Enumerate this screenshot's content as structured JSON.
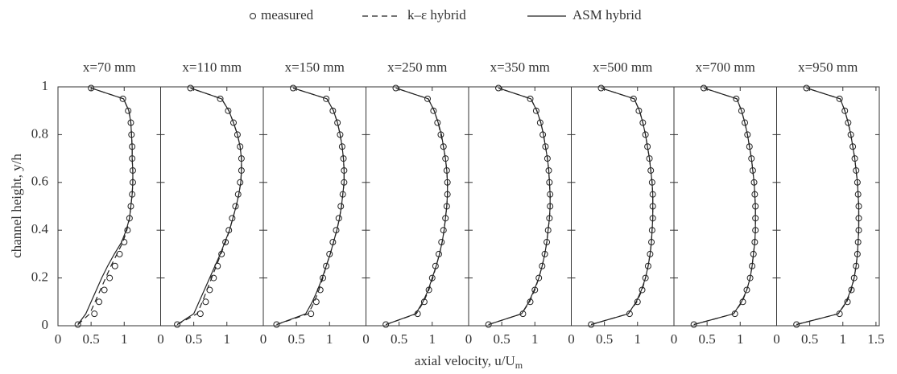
{
  "chart_data": {
    "type": "line",
    "legend": [
      {
        "name": "measured",
        "style": "markers"
      },
      {
        "name": "k–ε hybrid",
        "style": "dashed"
      },
      {
        "name": "ASM hybrid",
        "style": "solid"
      }
    ],
    "color": "#222222",
    "xlabel": {
      "text": "axial velocity, u/U",
      "subscript": "m"
    },
    "ylabel": "channel height, y/h",
    "ylim": [
      0,
      1
    ],
    "yticks": [
      0,
      0.2,
      0.4,
      0.6,
      0.8,
      1
    ],
    "y": [
      0.005,
      0.05,
      0.1,
      0.15,
      0.2,
      0.25,
      0.3,
      0.35,
      0.4,
      0.45,
      0.5,
      0.55,
      0.6,
      0.65,
      0.7,
      0.75,
      0.8,
      0.85,
      0.9,
      0.95,
      0.995
    ],
    "panels": [
      {
        "title": "x=70 mm",
        "xlim": [
          0,
          1.55
        ],
        "xticks": [
          0,
          0.5,
          1
        ],
        "series": [
          [
            0.3,
            0.55,
            0.62,
            0.7,
            0.78,
            0.86,
            0.93,
            1.0,
            1.05,
            1.08,
            1.1,
            1.12,
            1.13,
            1.13,
            1.12,
            1.12,
            1.11,
            1.1,
            1.06,
            0.98,
            0.5
          ],
          [
            0.3,
            0.48,
            0.56,
            0.64,
            0.72,
            0.8,
            0.89,
            0.98,
            1.04,
            1.08,
            1.1,
            1.12,
            1.13,
            1.13,
            1.12,
            1.12,
            1.11,
            1.1,
            1.07,
            0.99,
            0.5
          ],
          [
            0.3,
            0.42,
            0.5,
            0.58,
            0.66,
            0.75,
            0.85,
            0.96,
            1.03,
            1.08,
            1.1,
            1.12,
            1.13,
            1.13,
            1.12,
            1.12,
            1.11,
            1.1,
            1.07,
            0.99,
            0.5
          ]
        ]
      },
      {
        "title": "x=110 mm",
        "xlim": [
          0,
          1.55
        ],
        "xticks": [
          0,
          0.5,
          1
        ],
        "series": [
          [
            0.25,
            0.6,
            0.68,
            0.74,
            0.8,
            0.86,
            0.92,
            0.98,
            1.03,
            1.08,
            1.13,
            1.17,
            1.2,
            1.22,
            1.22,
            1.2,
            1.16,
            1.1,
            1.02,
            0.9,
            0.45
          ],
          [
            0.25,
            0.55,
            0.63,
            0.7,
            0.77,
            0.84,
            0.91,
            0.98,
            1.04,
            1.09,
            1.14,
            1.18,
            1.21,
            1.22,
            1.22,
            1.2,
            1.16,
            1.1,
            1.03,
            0.92,
            0.45
          ],
          [
            0.25,
            0.5,
            0.58,
            0.66,
            0.74,
            0.82,
            0.9,
            0.97,
            1.04,
            1.09,
            1.14,
            1.18,
            1.21,
            1.22,
            1.22,
            1.2,
            1.16,
            1.1,
            1.03,
            0.92,
            0.45
          ]
        ]
      },
      {
        "title": "x=150 mm",
        "xlim": [
          0,
          1.55
        ],
        "xticks": [
          0,
          0.5,
          1
        ],
        "series": [
          [
            0.2,
            0.72,
            0.8,
            0.86,
            0.9,
            0.95,
            1.0,
            1.05,
            1.1,
            1.14,
            1.17,
            1.2,
            1.22,
            1.22,
            1.21,
            1.19,
            1.16,
            1.12,
            1.05,
            0.95,
            0.45
          ],
          [
            0.2,
            0.68,
            0.77,
            0.84,
            0.9,
            0.95,
            1.01,
            1.06,
            1.11,
            1.15,
            1.18,
            1.2,
            1.22,
            1.22,
            1.21,
            1.19,
            1.16,
            1.12,
            1.06,
            0.96,
            0.45
          ],
          [
            0.2,
            0.64,
            0.74,
            0.82,
            0.89,
            0.95,
            1.01,
            1.06,
            1.11,
            1.15,
            1.18,
            1.2,
            1.22,
            1.22,
            1.21,
            1.19,
            1.16,
            1.12,
            1.06,
            0.96,
            0.45
          ]
        ]
      },
      {
        "title": "x=250 mm",
        "xlim": [
          0,
          1.55
        ],
        "xticks": [
          0,
          0.5,
          1
        ],
        "series": [
          [
            0.3,
            0.78,
            0.88,
            0.95,
            1.0,
            1.05,
            1.1,
            1.14,
            1.17,
            1.2,
            1.22,
            1.23,
            1.23,
            1.22,
            1.2,
            1.17,
            1.13,
            1.08,
            1.02,
            0.93,
            0.45
          ],
          [
            0.3,
            0.76,
            0.87,
            0.95,
            1.01,
            1.06,
            1.11,
            1.15,
            1.18,
            1.2,
            1.22,
            1.23,
            1.23,
            1.22,
            1.2,
            1.17,
            1.13,
            1.09,
            1.03,
            0.94,
            0.45
          ],
          [
            0.3,
            0.75,
            0.86,
            0.94,
            1.0,
            1.06,
            1.11,
            1.15,
            1.18,
            1.2,
            1.22,
            1.23,
            1.23,
            1.22,
            1.2,
            1.17,
            1.14,
            1.09,
            1.03,
            0.94,
            0.45
          ]
        ]
      },
      {
        "title": "x=350 mm",
        "xlim": [
          0,
          1.55
        ],
        "xticks": [
          0,
          0.5,
          1
        ],
        "series": [
          [
            0.3,
            0.82,
            0.93,
            1.0,
            1.06,
            1.11,
            1.15,
            1.18,
            1.2,
            1.22,
            1.23,
            1.23,
            1.22,
            1.21,
            1.19,
            1.16,
            1.12,
            1.08,
            1.02,
            0.93,
            0.45
          ],
          [
            0.3,
            0.8,
            0.92,
            1.0,
            1.06,
            1.11,
            1.15,
            1.18,
            1.2,
            1.22,
            1.23,
            1.23,
            1.22,
            1.21,
            1.19,
            1.16,
            1.13,
            1.09,
            1.03,
            0.94,
            0.45
          ],
          [
            0.3,
            0.8,
            0.91,
            0.99,
            1.06,
            1.11,
            1.15,
            1.18,
            1.2,
            1.22,
            1.23,
            1.23,
            1.22,
            1.21,
            1.19,
            1.16,
            1.13,
            1.09,
            1.03,
            0.94,
            0.45
          ]
        ]
      },
      {
        "title": "x=500 mm",
        "xlim": [
          0,
          1.55
        ],
        "xticks": [
          0,
          0.5,
          1
        ],
        "series": [
          [
            0.3,
            0.88,
            1.0,
            1.07,
            1.12,
            1.16,
            1.19,
            1.21,
            1.22,
            1.23,
            1.23,
            1.23,
            1.22,
            1.2,
            1.18,
            1.15,
            1.12,
            1.08,
            1.02,
            0.94,
            0.45
          ],
          [
            0.3,
            0.86,
            0.99,
            1.07,
            1.12,
            1.16,
            1.19,
            1.21,
            1.22,
            1.23,
            1.23,
            1.23,
            1.22,
            1.2,
            1.18,
            1.15,
            1.12,
            1.08,
            1.03,
            0.95,
            0.45
          ],
          [
            0.3,
            0.86,
            0.98,
            1.06,
            1.12,
            1.16,
            1.19,
            1.21,
            1.22,
            1.23,
            1.23,
            1.23,
            1.22,
            1.2,
            1.18,
            1.15,
            1.12,
            1.08,
            1.03,
            0.95,
            0.45
          ]
        ]
      },
      {
        "title": "x=700 mm",
        "xlim": [
          0,
          1.55
        ],
        "xticks": [
          0,
          0.5,
          1
        ],
        "series": [
          [
            0.3,
            0.92,
            1.04,
            1.1,
            1.15,
            1.18,
            1.2,
            1.22,
            1.23,
            1.23,
            1.23,
            1.22,
            1.21,
            1.19,
            1.17,
            1.14,
            1.11,
            1.07,
            1.02,
            0.94,
            0.45
          ],
          [
            0.3,
            0.9,
            1.03,
            1.1,
            1.15,
            1.18,
            1.2,
            1.22,
            1.23,
            1.23,
            1.23,
            1.22,
            1.21,
            1.19,
            1.17,
            1.14,
            1.11,
            1.07,
            1.02,
            0.95,
            0.45
          ],
          [
            0.3,
            0.9,
            1.02,
            1.1,
            1.15,
            1.18,
            1.2,
            1.22,
            1.23,
            1.23,
            1.23,
            1.22,
            1.21,
            1.19,
            1.17,
            1.14,
            1.11,
            1.07,
            1.02,
            0.95,
            0.45
          ]
        ]
      },
      {
        "title": "x=950 mm",
        "xlim": [
          0,
          1.55
        ],
        "xticks": [
          0,
          0.5,
          1,
          1.5
        ],
        "series": [
          [
            0.3,
            0.95,
            1.07,
            1.13,
            1.17,
            1.2,
            1.22,
            1.23,
            1.24,
            1.24,
            1.24,
            1.23,
            1.22,
            1.2,
            1.18,
            1.15,
            1.12,
            1.08,
            1.03,
            0.95,
            0.45
          ],
          [
            0.3,
            0.93,
            1.06,
            1.13,
            1.17,
            1.2,
            1.22,
            1.23,
            1.24,
            1.24,
            1.24,
            1.23,
            1.22,
            1.2,
            1.18,
            1.15,
            1.12,
            1.08,
            1.03,
            0.96,
            0.45
          ],
          [
            0.3,
            0.93,
            1.05,
            1.12,
            1.17,
            1.2,
            1.22,
            1.23,
            1.24,
            1.24,
            1.24,
            1.23,
            1.22,
            1.2,
            1.18,
            1.15,
            1.12,
            1.08,
            1.03,
            0.96,
            0.45
          ]
        ]
      }
    ]
  }
}
